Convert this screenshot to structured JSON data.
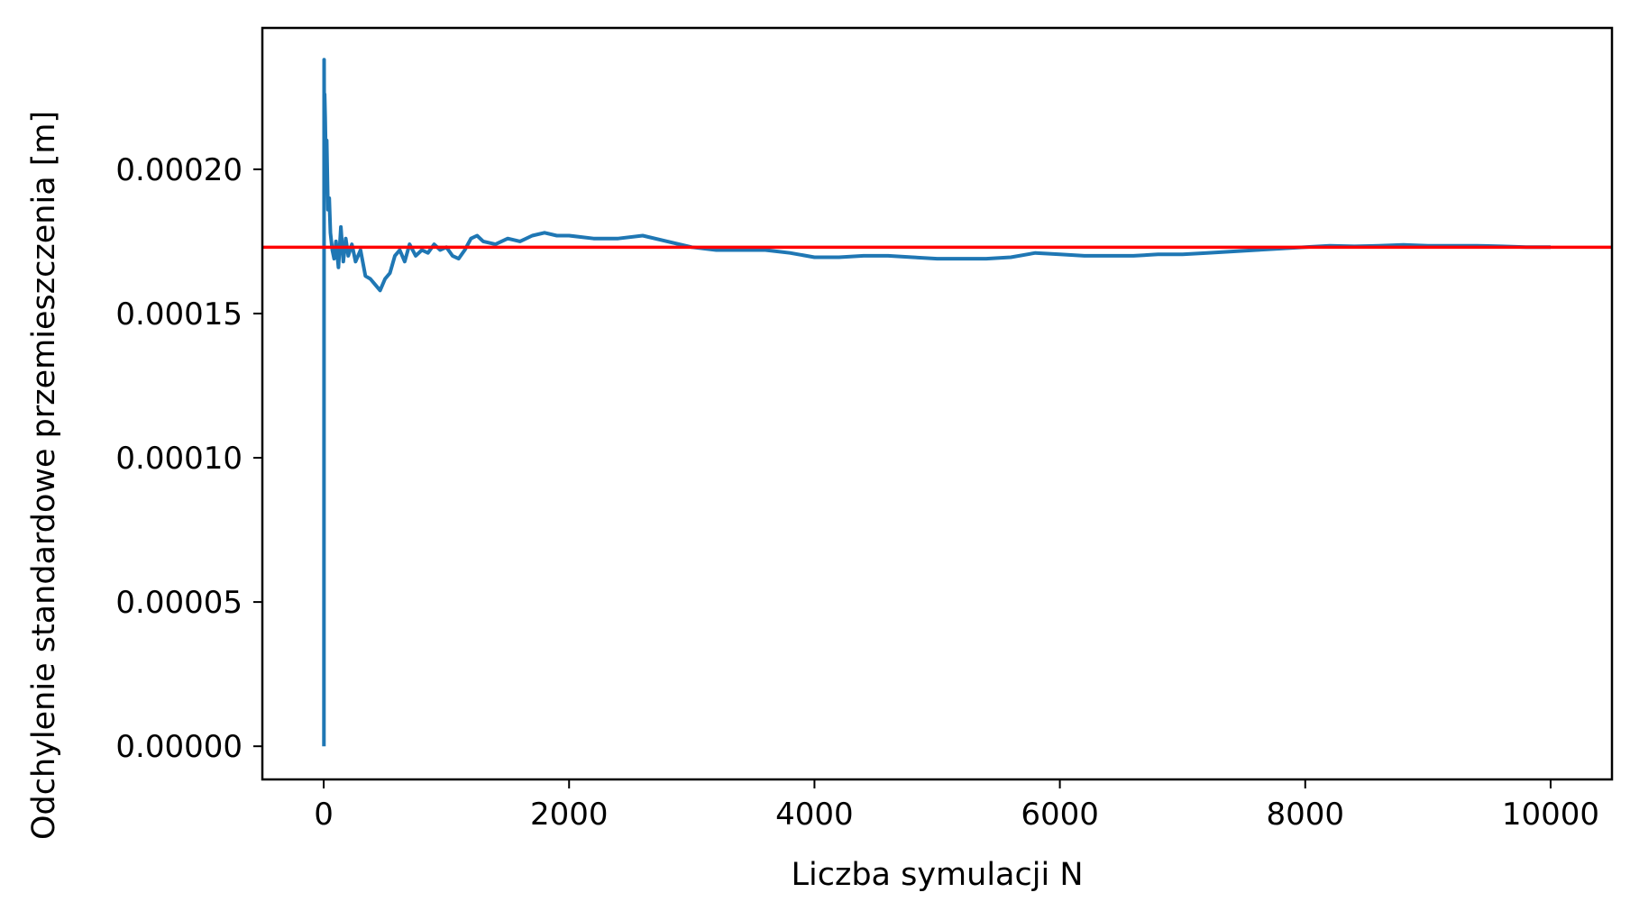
{
  "chart_data": {
    "type": "line",
    "title": "",
    "xlabel": "Liczba symulacji N",
    "ylabel": "Odchylenie standardowe przemieszczenia [m]",
    "xlim": [
      -500,
      10500
    ],
    "ylim": [
      -1.15e-05,
      0.000249
    ],
    "xticks": [
      0,
      2000,
      4000,
      6000,
      8000,
      10000
    ],
    "xtick_labels": [
      "0",
      "2000",
      "4000",
      "6000",
      "8000",
      "10000"
    ],
    "yticks": [
      0,
      5e-05,
      0.0001,
      0.00015,
      0.0002
    ],
    "ytick_labels": [
      "0.00000",
      "0.00005",
      "0.00010",
      "0.00015",
      "0.00020"
    ],
    "grid": false,
    "legend": "none",
    "series": [
      {
        "color": "#1f77b4",
        "x": [
          2,
          3,
          5,
          8,
          12,
          18,
          25,
          35,
          45,
          55,
          70,
          85,
          100,
          120,
          140,
          160,
          180,
          200,
          230,
          260,
          300,
          340,
          380,
          420,
          460,
          500,
          540,
          580,
          620,
          660,
          700,
          750,
          800,
          850,
          900,
          950,
          1000,
          1050,
          1100,
          1150,
          1200,
          1250,
          1300,
          1400,
          1500,
          1600,
          1700,
          1800,
          1900,
          2000,
          2200,
          2400,
          2600,
          2800,
          3000,
          3200,
          3400,
          3600,
          3800,
          4000,
          4200,
          4400,
          4600,
          4800,
          5000,
          5200,
          5400,
          5600,
          5800,
          6000,
          6200,
          6400,
          6600,
          6800,
          7000,
          7200,
          7400,
          7600,
          7800,
          8000,
          8200,
          8400,
          8600,
          8800,
          9000,
          9200,
          9400,
          9600,
          9800,
          10000
        ],
        "y": [
          0.0,
          0.000238,
          0.000205,
          0.000226,
          0.000218,
          0.000203,
          0.00021,
          0.000186,
          0.00019,
          0.000178,
          0.000172,
          0.000169,
          0.000175,
          0.000166,
          0.00018,
          0.000168,
          0.000176,
          0.00017,
          0.000174,
          0.000168,
          0.000172,
          0.000163,
          0.000162,
          0.00016,
          0.000158,
          0.000162,
          0.000164,
          0.00017,
          0.000172,
          0.000168,
          0.000174,
          0.00017,
          0.000172,
          0.000171,
          0.000174,
          0.000172,
          0.000173,
          0.00017,
          0.000169,
          0.000172,
          0.000176,
          0.000177,
          0.000175,
          0.000174,
          0.000176,
          0.000175,
          0.000177,
          0.000178,
          0.000177,
          0.000177,
          0.000176,
          0.000176,
          0.000177,
          0.000175,
          0.000173,
          0.000172,
          0.000172,
          0.000172,
          0.000171,
          0.0001695,
          0.0001695,
          0.00017,
          0.00017,
          0.0001695,
          0.000169,
          0.000169,
          0.000169,
          0.0001695,
          0.000171,
          0.0001705,
          0.00017,
          0.00017,
          0.00017,
          0.0001705,
          0.0001705,
          0.000171,
          0.0001715,
          0.000172,
          0.0001725,
          0.000173,
          0.0001735,
          0.0001733,
          0.0001735,
          0.0001738,
          0.0001735,
          0.0001735,
          0.0001735,
          0.0001733,
          0.000173,
          0.000173
        ]
      }
    ],
    "hline": {
      "y": 0.000173,
      "color": "#ff0000"
    }
  }
}
